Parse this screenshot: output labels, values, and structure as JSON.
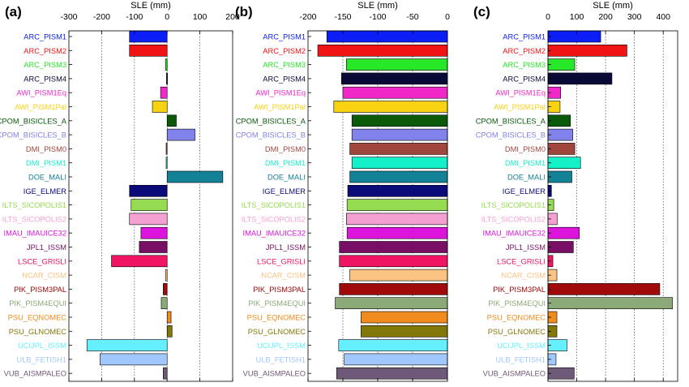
{
  "chart_data": [
    {
      "type": "bar",
      "orientation": "horizontal",
      "panel_label": "(a)",
      "xlabel": "SLE (mm)",
      "xlim": [
        -300,
        200
      ],
      "xticks": [
        -300,
        -200,
        -100,
        0,
        100,
        200
      ],
      "grid": "vertical dotted",
      "categories": [
        "ARC_PISM1",
        "ARC_PISM2",
        "ARC_PISM3",
        "ARC_PISM4",
        "AWI_PISM1Eq",
        "AWI_PISM1Pal",
        "CPOM_BISICLES_A",
        "CPOM_BISICLES_B",
        "DMI_PISM0",
        "DMI_PISM1",
        "DOE_MALI",
        "IGE_ELMER",
        "ILTS_SICOPOLIS1",
        "ILTS_SICOPOLIS2",
        "IMAU_IMAUICE32",
        "JPL1_ISSM",
        "LSCE_GRISLI",
        "NCAR_CISM",
        "PIK_PISM3PAL",
        "PIK_PISM4EQUI",
        "PSU_EQNOMEC",
        "PSU_GLNOMEC",
        "UCIJPL_ISSM",
        "ULB_FETISH1",
        "VUB_AISMPALEO"
      ],
      "values": [
        -115,
        -115,
        -5,
        -2,
        -20,
        -45,
        28,
        85,
        -3,
        -3,
        170,
        -115,
        -110,
        -115,
        -80,
        -85,
        -170,
        -5,
        -12,
        -18,
        12,
        15,
        -245,
        -205,
        -12
      ]
    },
    {
      "type": "bar",
      "orientation": "horizontal",
      "panel_label": "(b)",
      "xlabel": "SLE (mm)",
      "xlim": [
        -200,
        0
      ],
      "xticks": [
        -200,
        -150,
        -100,
        -50,
        0
      ],
      "grid": "vertical dotted",
      "categories": [
        "ARC_PISM1",
        "ARC_PISM2",
        "ARC_PISM3",
        "ARC_PISM4",
        "AWI_PISM1Eq",
        "AWI_PISM1Pal",
        "CPOM_BISICLES_A",
        "CPOM_BISICLES_B",
        "DMI_PISM0",
        "DMI_PISM1",
        "DOE_MALI",
        "IGE_ELMER",
        "ILTS_SICOPOLIS1",
        "ILTS_SICOPOLIS2",
        "IMAU_IMAUICE32",
        "JPL1_ISSM",
        "LSCE_GRISLI",
        "NCAR_CISM",
        "PIK_PISM3PAL",
        "PIK_PISM4EQUI",
        "PSU_EQNOMEC",
        "PSU_GLNOMEC",
        "UCIJPL_ISSM",
        "ULB_FETISH1",
        "VUB_AISMPALEO"
      ],
      "values": [
        -173,
        -186,
        -145,
        -152,
        -150,
        -163,
        -137,
        -137,
        -140,
        -137,
        -140,
        -143,
        -144,
        -145,
        -144,
        -155,
        -155,
        -140,
        -155,
        -161,
        -124,
        -124,
        -156,
        -148,
        -159
      ]
    },
    {
      "type": "bar",
      "orientation": "horizontal",
      "panel_label": "(c)",
      "xlabel": "SLE (mm)",
      "xlim": [
        0,
        450
      ],
      "xticks": [
        0,
        100,
        200,
        300,
        400
      ],
      "grid": "vertical dotted",
      "categories": [
        "ARC_PISM1",
        "ARC_PISM2",
        "ARC_PISM3",
        "ARC_PISM4",
        "AWI_PISM1Eq",
        "AWI_PISM1Pal",
        "CPOM_BISICLES_A",
        "CPOM_BISICLES_B",
        "DMI_PISM0",
        "DMI_PISM1",
        "DOE_MALI",
        "IGE_ELMER",
        "ILTS_SICOPOLIS1",
        "ILTS_SICOPOLIS2",
        "IMAU_IMAUICE32",
        "JPL1_ISSM",
        "LSCE_GRISLI",
        "NCAR_CISM",
        "PIK_PISM3PAL",
        "PIK_PISM4EQUI",
        "PSU_EQNOMEC",
        "PSU_GLNOMEC",
        "UCIJPL_ISSM",
        "ULB_FETISH1",
        "VUB_AISMPALEO"
      ],
      "values": [
        183,
        274,
        93,
        222,
        44,
        42,
        78,
        86,
        93,
        113,
        83,
        12,
        20,
        32,
        109,
        88,
        17,
        31,
        388,
        432,
        31,
        31,
        66,
        28,
        91
      ]
    }
  ],
  "colors": [
    "#0a1ef5",
    "#f01414",
    "#28e628",
    "#0a0a37",
    "#f028c8",
    "#fad214",
    "#0a5a0a",
    "#8282eb",
    "#a0463c",
    "#14f0c8",
    "#148296",
    "#0a0a78",
    "#96dc50",
    "#f5a0d2",
    "#dc14dc",
    "#780f64",
    "#f01464",
    "#fac382",
    "#a00a0a",
    "#8caa78",
    "#f08c1e",
    "#82780a",
    "#64f0ff",
    "#a0c8ff",
    "#6e5a78"
  ]
}
